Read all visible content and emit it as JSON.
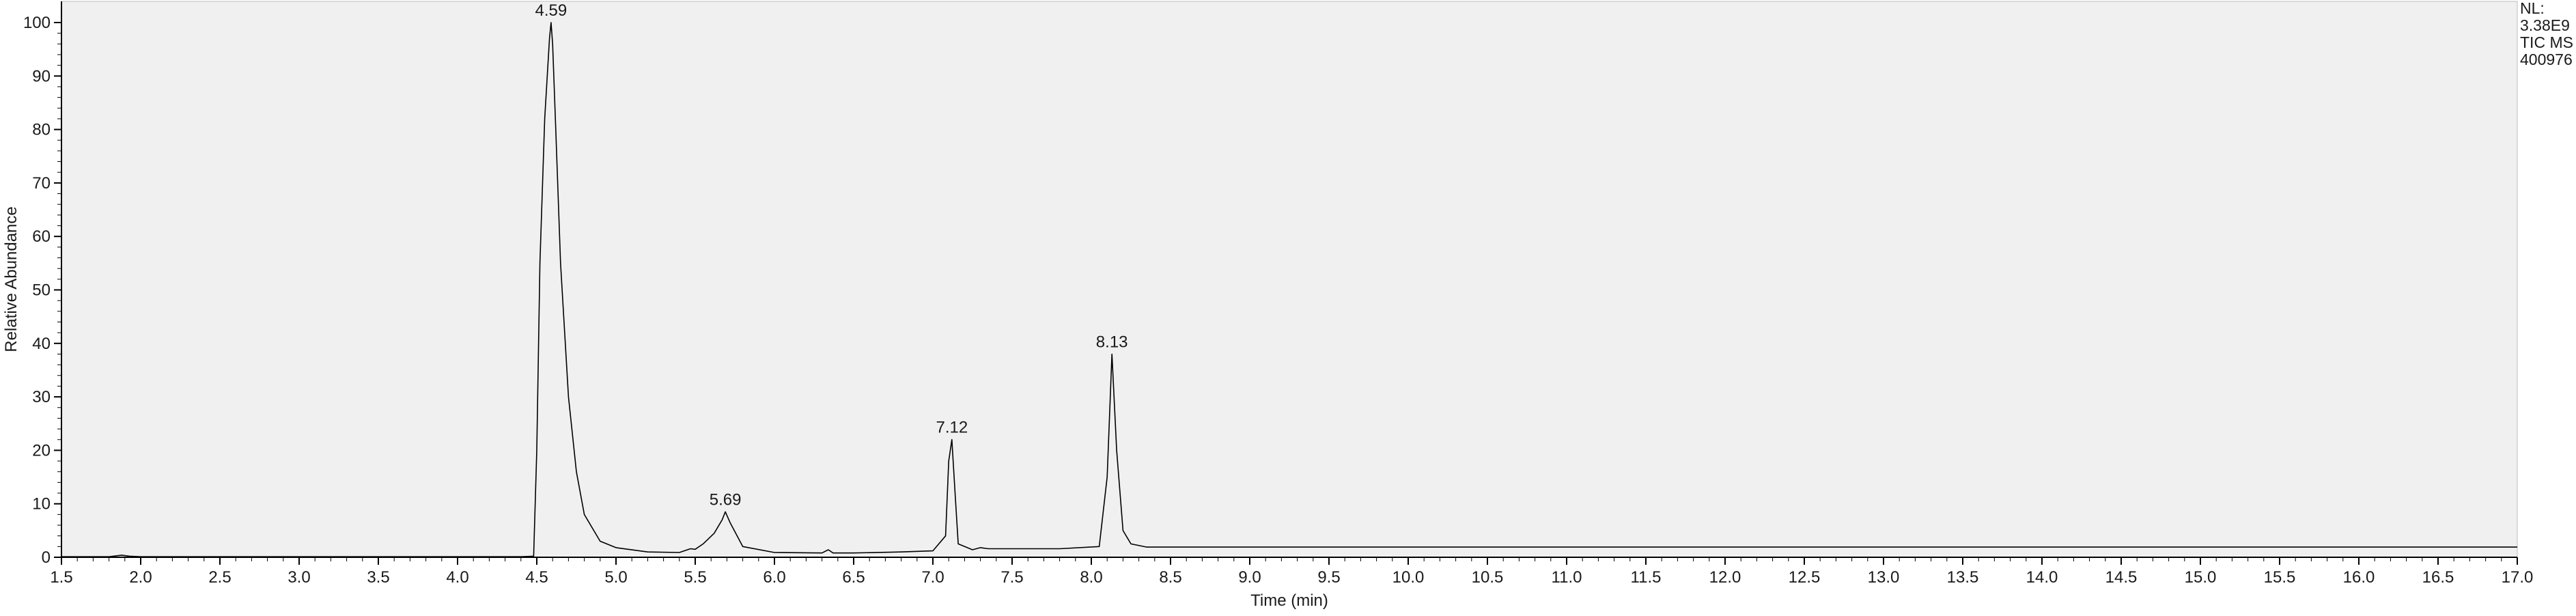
{
  "chart_data": {
    "type": "line",
    "xlabel": "Time (min)",
    "ylabel": "Relative Abundance",
    "xlim": [
      1.5,
      17.0
    ],
    "ylim": [
      0,
      100
    ],
    "x_ticks": [
      1.5,
      2.0,
      2.5,
      3.0,
      3.5,
      4.0,
      4.5,
      5.0,
      5.5,
      6.0,
      6.5,
      7.0,
      7.5,
      8.0,
      8.5,
      9.0,
      9.5,
      10.0,
      10.5,
      11.0,
      11.5,
      12.0,
      12.5,
      13.0,
      13.5,
      14.0,
      14.5,
      15.0,
      15.5,
      16.0,
      16.5,
      17.0
    ],
    "x_tick_labels": [
      "1.5",
      "2.0",
      "2.5",
      "3.0",
      "3.5",
      "4.0",
      "4.5",
      "5.0",
      "5.5",
      "6.0",
      "6.5",
      "7.0",
      "7.5",
      "8.0",
      "8.5",
      "9.0",
      "9.5",
      "10.0",
      "10.5",
      "11.0",
      "11.5",
      "12.0",
      "12.5",
      "13.0",
      "13.5",
      "14.0",
      "14.5",
      "15.0",
      "15.5",
      "16.0",
      "16.5",
      "17.0"
    ],
    "y_ticks": [
      0,
      10,
      20,
      30,
      40,
      50,
      60,
      70,
      80,
      90,
      100
    ],
    "y_tick_labels": [
      "0",
      "10",
      "20",
      "30",
      "40",
      "50",
      "60",
      "70",
      "80",
      "90",
      "100"
    ],
    "grid": false,
    "series": [
      {
        "x": [
          1.5,
          1.8,
          1.88,
          1.93,
          2.0,
          2.5,
          3.0,
          3.5,
          4.0,
          4.4,
          4.48,
          4.5,
          4.52,
          4.55,
          4.58,
          4.59,
          4.6,
          4.62,
          4.65,
          4.7,
          4.75,
          4.8,
          4.9,
          5.0,
          5.2,
          5.4,
          5.47,
          5.5,
          5.55,
          5.62,
          5.67,
          5.69,
          5.72,
          5.8,
          6.0,
          6.3,
          6.34,
          6.37,
          6.5,
          6.8,
          7.0,
          7.08,
          7.1,
          7.12,
          7.14,
          7.16,
          7.25,
          7.3,
          7.35,
          7.5,
          7.8,
          8.05,
          8.1,
          8.13,
          8.16,
          8.2,
          8.25,
          8.35,
          9.0,
          10.0,
          12.0,
          14.0,
          16.0,
          17.0
        ],
        "y": [
          0.1,
          0.1,
          0.4,
          0.2,
          0.1,
          0.1,
          0.1,
          0.1,
          0.1,
          0.1,
          0.2,
          20,
          55,
          82,
          97,
          100,
          96,
          80,
          55,
          30,
          16,
          8,
          3,
          1.8,
          1.0,
          0.9,
          1.6,
          1.5,
          2.5,
          4.5,
          7.0,
          8.5,
          6.5,
          2.0,
          0.9,
          0.8,
          1.4,
          0.8,
          0.8,
          1.0,
          1.2,
          4.0,
          18,
          22,
          12,
          2.5,
          1.4,
          1.8,
          1.6,
          1.6,
          1.6,
          2.0,
          15,
          38,
          20,
          5.0,
          2.5,
          1.9,
          1.9,
          1.9,
          1.9,
          1.9,
          1.9,
          1.9
        ]
      }
    ],
    "annotations": [
      {
        "label": "4.59",
        "x": 4.59,
        "y": 100
      },
      {
        "label": "5.69",
        "x": 5.69,
        "y": 8.5
      },
      {
        "label": "7.12",
        "x": 7.12,
        "y": 22
      },
      {
        "label": "8.13",
        "x": 8.13,
        "y": 38
      }
    ],
    "info_lines": [
      "NL:",
      "3.38E9",
      "TIC  MS",
      "400976"
    ]
  }
}
